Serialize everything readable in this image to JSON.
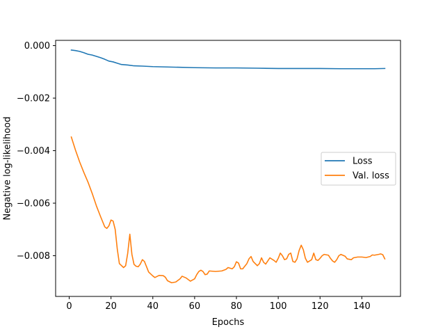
{
  "chart_data": {
    "type": "line",
    "title": "",
    "xlabel": "Epochs",
    "ylabel": "Negative log-likelihood",
    "xlim": [
      -6.5,
      158.5
    ],
    "ylim": [
      -0.00955,
      0.0002
    ],
    "x_ticks": [
      0,
      20,
      40,
      60,
      80,
      100,
      120,
      140
    ],
    "x_tick_labels": [
      "0",
      "20",
      "40",
      "60",
      "80",
      "100",
      "120",
      "140"
    ],
    "y_ticks": [
      0.0,
      -0.002,
      -0.004,
      -0.006,
      -0.008
    ],
    "y_tick_labels": [
      "0.000",
      "−0.002",
      "−0.004",
      "−0.006",
      "−0.008"
    ],
    "grid": false,
    "legend_position": "center-right",
    "series": [
      {
        "name": "Loss",
        "color": "#1f77b4",
        "points": [
          [
            1,
            -0.00017
          ],
          [
            3,
            -0.00019
          ],
          [
            5,
            -0.00022
          ],
          [
            7,
            -0.00027
          ],
          [
            9,
            -0.00033
          ],
          [
            11,
            -0.00036
          ],
          [
            13,
            -0.00041
          ],
          [
            15,
            -0.00046
          ],
          [
            17,
            -0.00052
          ],
          [
            19,
            -0.00059
          ],
          [
            21,
            -0.00062
          ],
          [
            23,
            -0.00067
          ],
          [
            25,
            -0.00072
          ],
          [
            28,
            -0.00074
          ],
          [
            31,
            -0.00077
          ],
          [
            35,
            -0.00078
          ],
          [
            40,
            -0.0008
          ],
          [
            45,
            -0.00081
          ],
          [
            50,
            -0.00082
          ],
          [
            60,
            -0.00084
          ],
          [
            70,
            -0.00085
          ],
          [
            80,
            -0.00085
          ],
          [
            90,
            -0.00086
          ],
          [
            100,
            -0.00087
          ],
          [
            110,
            -0.00087
          ],
          [
            120,
            -0.00087
          ],
          [
            130,
            -0.00088
          ],
          [
            140,
            -0.00088
          ],
          [
            146,
            -0.00088
          ],
          [
            151,
            -0.00087
          ]
        ]
      },
      {
        "name": "Val. loss",
        "color": "#ff7f0e",
        "points": [
          [
            1,
            -0.00348
          ],
          [
            3,
            -0.00398
          ],
          [
            5,
            -0.00443
          ],
          [
            7,
            -0.00483
          ],
          [
            9,
            -0.0052
          ],
          [
            11,
            -0.00563
          ],
          [
            13,
            -0.0061
          ],
          [
            15,
            -0.00651
          ],
          [
            17,
            -0.0069
          ],
          [
            18,
            -0.00696
          ],
          [
            19,
            -0.00686
          ],
          [
            20,
            -0.00664
          ],
          [
            21,
            -0.00668
          ],
          [
            22,
            -0.007
          ],
          [
            23,
            -0.00775
          ],
          [
            24,
            -0.0083
          ],
          [
            26,
            -0.00845
          ],
          [
            27,
            -0.00838
          ],
          [
            28,
            -0.0079
          ],
          [
            29,
            -0.00718
          ],
          [
            30,
            -0.00795
          ],
          [
            31,
            -0.00833
          ],
          [
            32,
            -0.0084
          ],
          [
            33,
            -0.00842
          ],
          [
            34,
            -0.00832
          ],
          [
            35,
            -0.00815
          ],
          [
            36,
            -0.00822
          ],
          [
            37,
            -0.00842
          ],
          [
            38,
            -0.00862
          ],
          [
            40,
            -0.00877
          ],
          [
            41,
            -0.00883
          ],
          [
            43,
            -0.00875
          ],
          [
            45,
            -0.00876
          ],
          [
            46,
            -0.00882
          ],
          [
            47,
            -0.00895
          ],
          [
            49,
            -0.00903
          ],
          [
            51,
            -0.009
          ],
          [
            53,
            -0.00888
          ],
          [
            54,
            -0.00878
          ],
          [
            56,
            -0.00885
          ],
          [
            58,
            -0.00897
          ],
          [
            60,
            -0.00888
          ],
          [
            61,
            -0.00872
          ],
          [
            62,
            -0.0086
          ],
          [
            63,
            -0.00855
          ],
          [
            64,
            -0.0086
          ],
          [
            65,
            -0.00872
          ],
          [
            66,
            -0.0087
          ],
          [
            67,
            -0.00858
          ],
          [
            70,
            -0.0086
          ],
          [
            73,
            -0.00858
          ],
          [
            75,
            -0.00852
          ],
          [
            76,
            -0.00845
          ],
          [
            78,
            -0.0085
          ],
          [
            79,
            -0.00842
          ],
          [
            80,
            -0.00823
          ],
          [
            81,
            -0.00828
          ],
          [
            82,
            -0.0085
          ],
          [
            83,
            -0.0085
          ],
          [
            85,
            -0.0083
          ],
          [
            86,
            -0.00812
          ],
          [
            87,
            -0.00803
          ],
          [
            88,
            -0.00822
          ],
          [
            90,
            -0.00838
          ],
          [
            91,
            -0.0083
          ],
          [
            92,
            -0.00808
          ],
          [
            93,
            -0.00825
          ],
          [
            94,
            -0.00832
          ],
          [
            96,
            -0.00808
          ],
          [
            98,
            -0.00818
          ],
          [
            99,
            -0.00825
          ],
          [
            100,
            -0.0081
          ],
          [
            101,
            -0.0079
          ],
          [
            102,
            -0.008
          ],
          [
            103,
            -0.00815
          ],
          [
            104,
            -0.00812
          ],
          [
            105,
            -0.00795
          ],
          [
            106,
            -0.0079
          ],
          [
            107,
            -0.00822
          ],
          [
            108,
            -0.00825
          ],
          [
            109,
            -0.00812
          ],
          [
            110,
            -0.0078
          ],
          [
            111,
            -0.0076
          ],
          [
            112,
            -0.00777
          ],
          [
            113,
            -0.0081
          ],
          [
            114,
            -0.00825
          ],
          [
            116,
            -0.00815
          ],
          [
            117,
            -0.0079
          ],
          [
            118,
            -0.00815
          ],
          [
            119,
            -0.00818
          ],
          [
            120,
            -0.0081
          ],
          [
            121,
            -0.008
          ],
          [
            122,
            -0.00795
          ],
          [
            124,
            -0.00798
          ],
          [
            125,
            -0.0081
          ],
          [
            126,
            -0.0082
          ],
          [
            127,
            -0.00825
          ],
          [
            128,
            -0.00815
          ],
          [
            129,
            -0.008
          ],
          [
            130,
            -0.00795
          ],
          [
            132,
            -0.00802
          ],
          [
            133,
            -0.00812
          ],
          [
            135,
            -0.00815
          ],
          [
            136,
            -0.00808
          ],
          [
            138,
            -0.00805
          ],
          [
            140,
            -0.00805
          ],
          [
            142,
            -0.00807
          ],
          [
            144,
            -0.00803
          ],
          [
            145,
            -0.00797
          ],
          [
            146,
            -0.00798
          ],
          [
            148,
            -0.00795
          ],
          [
            149,
            -0.00793
          ],
          [
            150,
            -0.00796
          ],
          [
            151,
            -0.00812
          ]
        ]
      }
    ]
  }
}
